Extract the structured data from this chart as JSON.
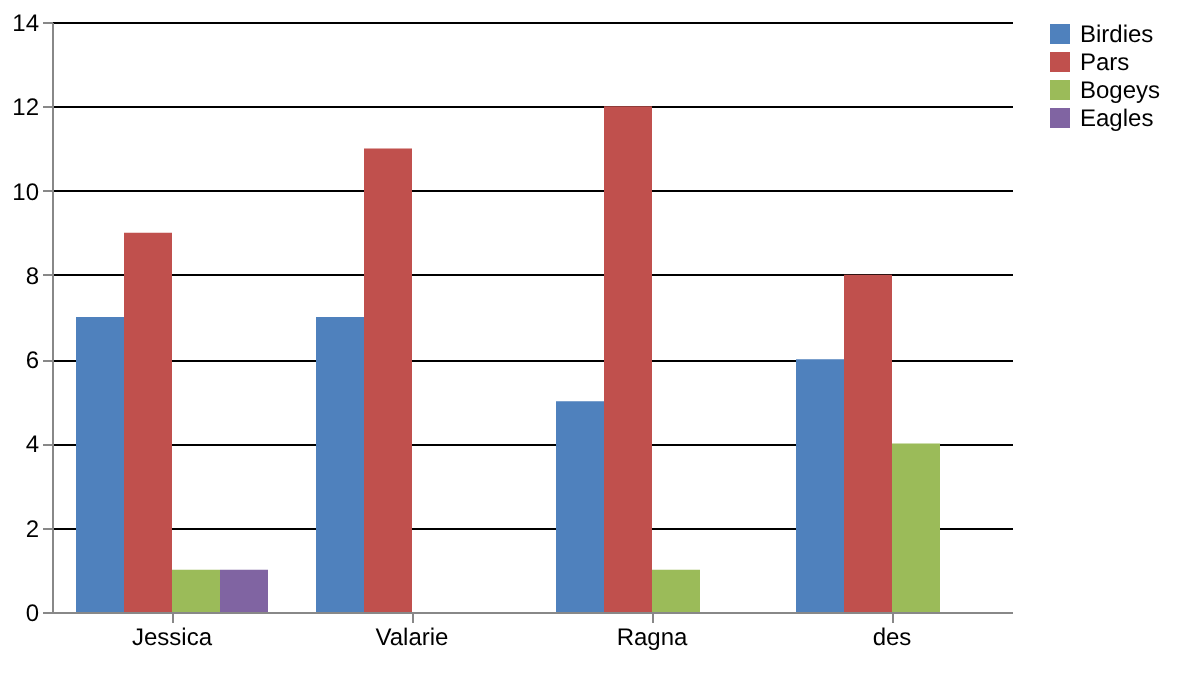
{
  "chart_data": {
    "type": "bar",
    "categories": [
      "Jessica",
      "Valarie",
      "Ragna",
      "des"
    ],
    "series": [
      {
        "name": "Birdies",
        "color": "#4f81bd",
        "values": [
          7,
          7,
          5,
          6
        ]
      },
      {
        "name": "Pars",
        "color": "#c0504d",
        "values": [
          9,
          11,
          12,
          8
        ]
      },
      {
        "name": "Bogeys",
        "color": "#9bbb59",
        "values": [
          1,
          0,
          1,
          4
        ]
      },
      {
        "name": "Eagles",
        "color": "#8064a2",
        "values": [
          1,
          0,
          0,
          0
        ]
      }
    ],
    "ylim": [
      0,
      14
    ],
    "yticks": [
      0,
      2,
      4,
      6,
      8,
      10,
      12,
      14
    ],
    "grid": "y",
    "legend": "right"
  }
}
